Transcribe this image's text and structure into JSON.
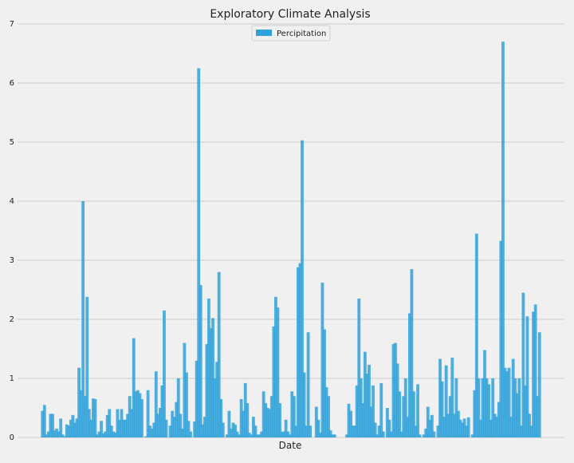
{
  "chart_data": {
    "type": "bar",
    "title": "Exploratory Climate Analysis",
    "xlabel": "Date",
    "ylabel": "",
    "ylim": [
      0,
      7
    ],
    "yticks": [
      "0",
      "1",
      "2",
      "3",
      "4",
      "5",
      "6",
      "7"
    ],
    "grid": true,
    "legend_position": "top-center",
    "series": [
      {
        "name": "Percipitation",
        "color": "#30a2da",
        "values": [
          0.45,
          0.55,
          0.05,
          0.1,
          0.4,
          0.4,
          0.12,
          0.15,
          0.1,
          0.32,
          0.05,
          0.02,
          0.22,
          0.2,
          0.3,
          0.38,
          0.25,
          0.32,
          1.18,
          0.8,
          4.0,
          0.7,
          2.38,
          0.48,
          0.3,
          0.66,
          0.65,
          0.05,
          0.1,
          0.28,
          0.07,
          0.1,
          0.38,
          0.48,
          0.2,
          0.1,
          0.08,
          0.48,
          0.3,
          0.48,
          0.3,
          0.3,
          0.4,
          0.7,
          0.48,
          1.68,
          0.78,
          0.8,
          0.75,
          0.65,
          0.0,
          0.02,
          0.8,
          0.2,
          0.15,
          0.25,
          1.12,
          0.4,
          0.5,
          0.88,
          2.15,
          0.3,
          0.0,
          0.2,
          0.45,
          0.35,
          0.6,
          1.0,
          0.4,
          0.15,
          1.6,
          1.1,
          0.28,
          0.1,
          0.0,
          0.27,
          1.3,
          6.25,
          2.58,
          0.22,
          0.35,
          1.58,
          2.35,
          1.85,
          2.02,
          1.0,
          1.28,
          2.8,
          0.65,
          0.25,
          0.0,
          0.05,
          0.45,
          0.15,
          0.25,
          0.22,
          0.1,
          0.05,
          0.65,
          0.45,
          0.92,
          0.58,
          0.08,
          0.05,
          0.35,
          0.2,
          0.05,
          0.05,
          0.1,
          0.78,
          0.58,
          0.5,
          0.48,
          0.7,
          1.88,
          2.38,
          2.2,
          0.58,
          0.1,
          0.1,
          0.3,
          0.1,
          0.05,
          0.78,
          0.7,
          0.2,
          2.88,
          2.95,
          5.03,
          1.1,
          0.2,
          1.78,
          0.2,
          0.0,
          0.0,
          0.52,
          0.3,
          0.08,
          2.62,
          1.83,
          0.85,
          0.7,
          0.12,
          0.05,
          0.05,
          0.0,
          0.0,
          0.0,
          0.0,
          0.0,
          0.05,
          0.57,
          0.45,
          0.2,
          0.2,
          0.88,
          2.35,
          1.0,
          0.58,
          1.45,
          1.08,
          1.23,
          0.52,
          0.88,
          0.25,
          0.05,
          0.2,
          0.92,
          0.1,
          0.0,
          0.5,
          0.3,
          0.1,
          1.58,
          1.6,
          1.25,
          0.78,
          0.1,
          0.7,
          1.0,
          0.35,
          2.1,
          2.85,
          0.78,
          0.2,
          0.9,
          0.05,
          0.0,
          0.05,
          0.15,
          0.52,
          0.3,
          0.38,
          0.1,
          0.0,
          0.2,
          1.33,
          0.95,
          0.35,
          1.22,
          0.4,
          0.7,
          1.35,
          0.4,
          1.0,
          0.45,
          0.3,
          0.25,
          0.32,
          0.2,
          0.34,
          0.0,
          0.05,
          0.8,
          3.45,
          1.0,
          0.3,
          1.0,
          1.48,
          1.0,
          0.9,
          0.3,
          1.0,
          0.4,
          0.35,
          0.6,
          3.33,
          6.7,
          1.18,
          1.12,
          1.18,
          0.35,
          1.33,
          1.0,
          0.75,
          1.0,
          0.2,
          2.45,
          0.88,
          2.05,
          0.4,
          0.2,
          2.13,
          2.25,
          0.7,
          1.78
        ]
      }
    ]
  }
}
